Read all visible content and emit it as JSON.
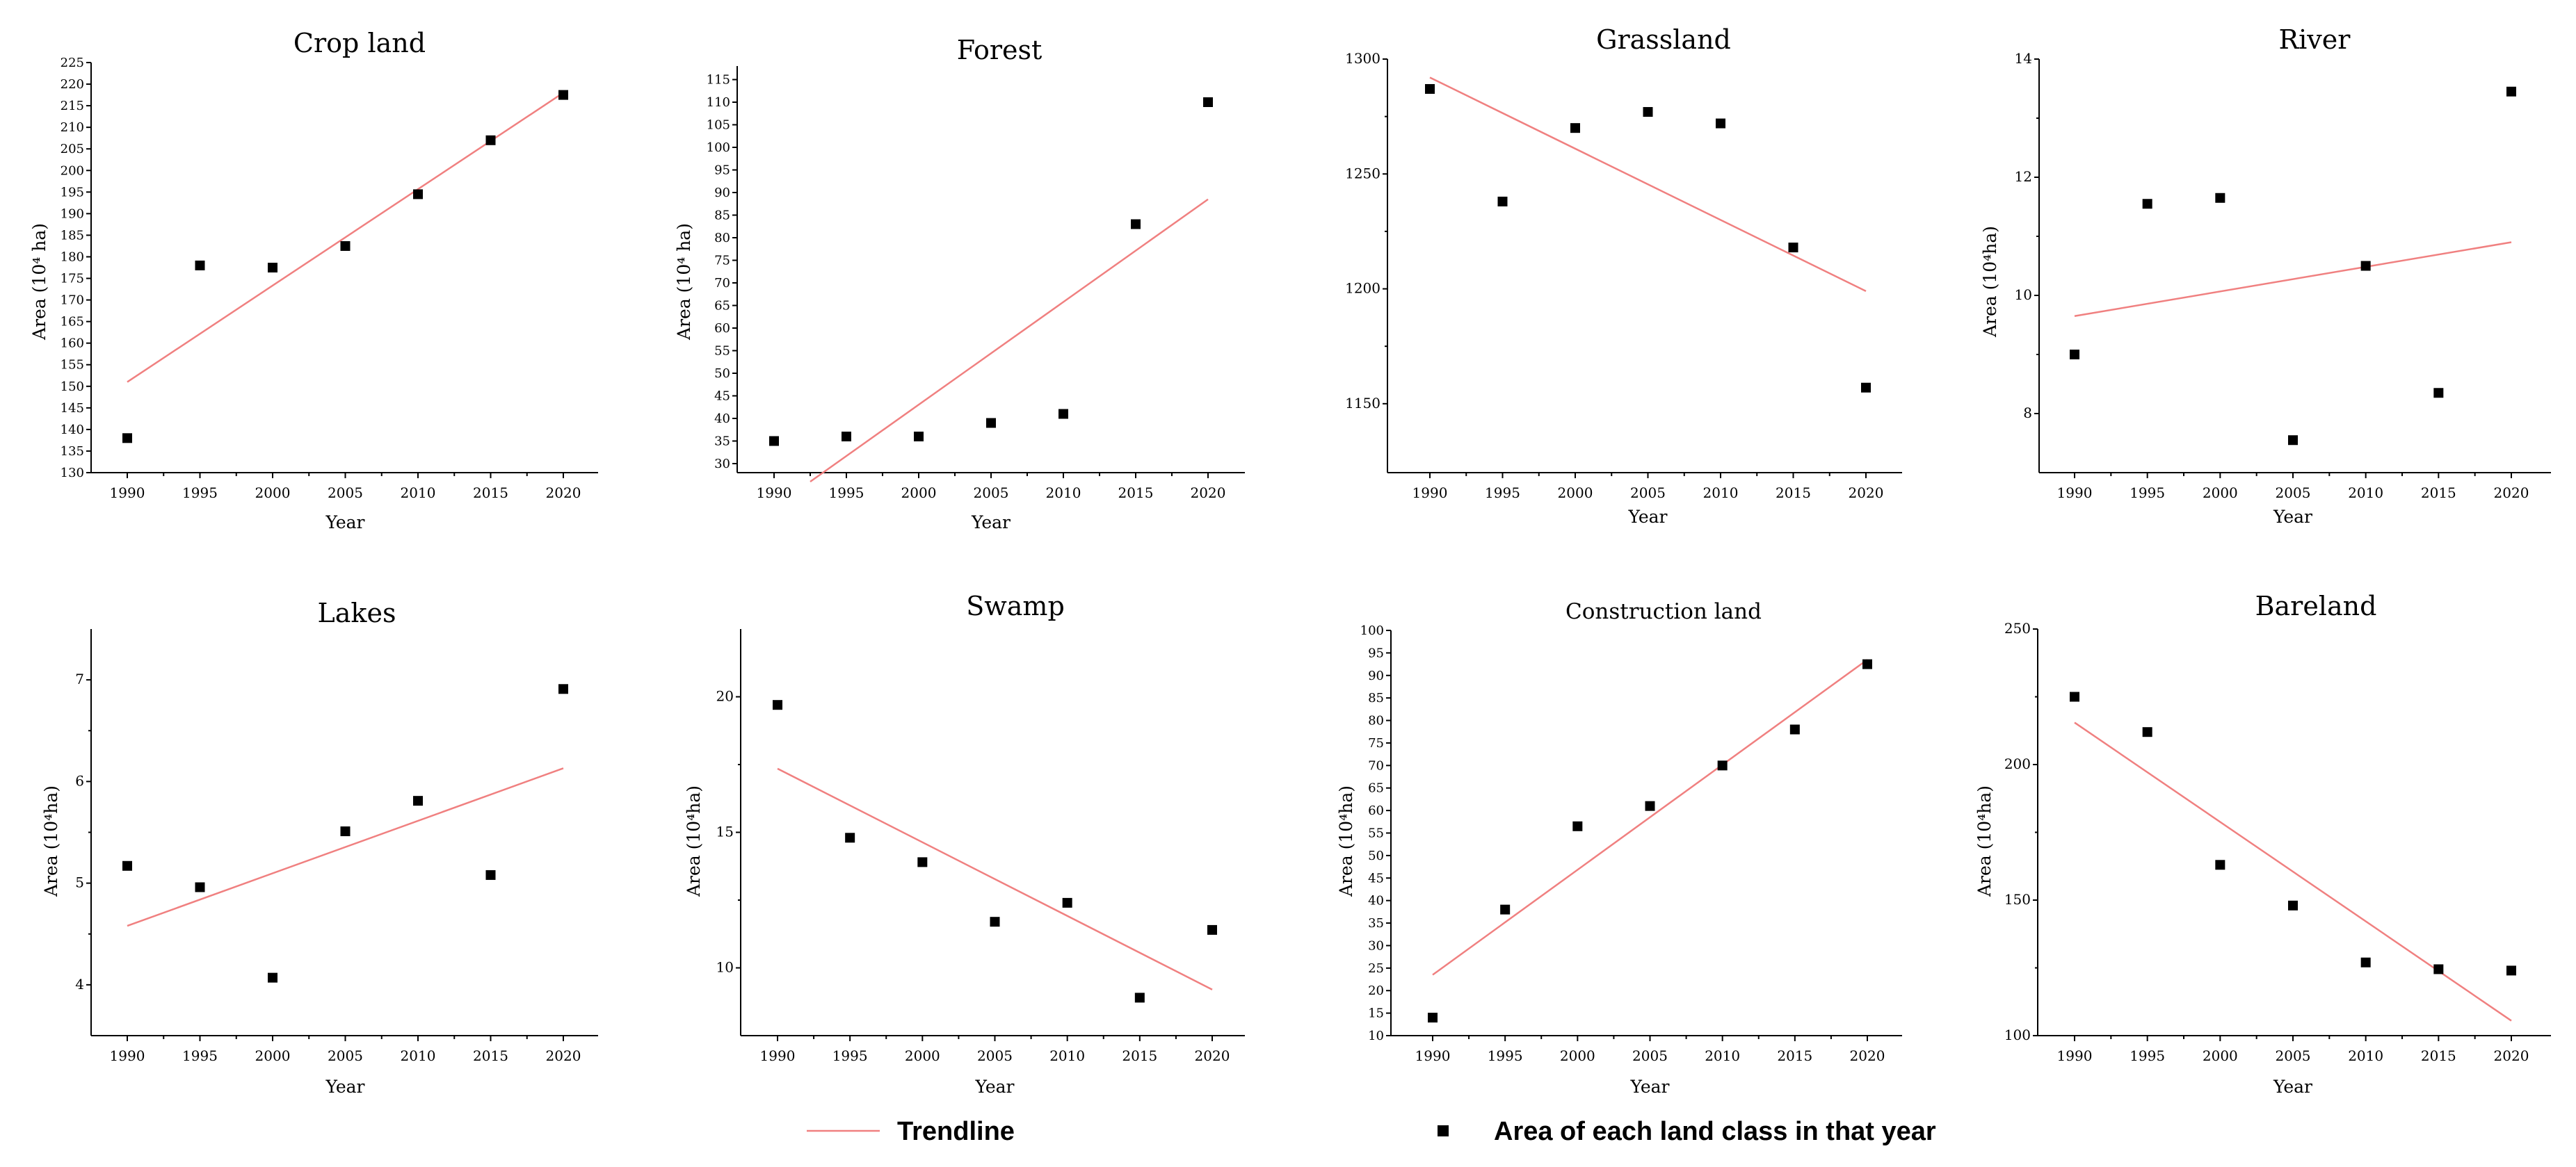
{
  "legend": {
    "trendline_label": "Trendline",
    "points_label": "Area of each land class in that year",
    "trend_color": "#f08080",
    "point_color": "#000000"
  },
  "chart_data": [
    {
      "id": "crop-land",
      "type": "scatter",
      "title": "Crop land",
      "xlabel": "Year",
      "ylabel": "Area (10⁴ ha)",
      "x": [
        1990,
        1995,
        2000,
        2005,
        2010,
        2015,
        2020
      ],
      "values": [
        138,
        178,
        177.5,
        182.5,
        194.5,
        207,
        217.5
      ],
      "ylim": [
        130,
        225
      ],
      "yticks": [
        130,
        135,
        140,
        145,
        150,
        155,
        160,
        165,
        170,
        175,
        180,
        185,
        190,
        195,
        200,
        205,
        210,
        215,
        220,
        225
      ],
      "trendline": {
        "start": [
          1990,
          151
        ],
        "end": [
          2020,
          218
        ]
      }
    },
    {
      "id": "forest",
      "type": "scatter",
      "title": "Forest",
      "xlabel": "Year",
      "ylabel": "Area (10⁴ ha)",
      "x": [
        1990,
        1995,
        2000,
        2005,
        2010,
        2015,
        2020
      ],
      "values": [
        35,
        36,
        36,
        39,
        41,
        83,
        110
      ],
      "ylim": [
        28,
        118
      ],
      "yticks": [
        30,
        35,
        40,
        45,
        50,
        55,
        60,
        65,
        70,
        75,
        80,
        85,
        90,
        95,
        100,
        105,
        110,
        115
      ],
      "trendline": {
        "start": [
          1992.5,
          26
        ],
        "end": [
          2020,
          88.5
        ]
      }
    },
    {
      "id": "grassland",
      "type": "scatter",
      "title": "Grassland",
      "xlabel": "Year",
      "ylabel": "",
      "x": [
        1990,
        1995,
        2000,
        2005,
        2010,
        2015,
        2020
      ],
      "values": [
        1287,
        1238,
        1270,
        1277,
        1272,
        1218,
        1157
      ],
      "ylim": [
        1120,
        1300
      ],
      "yticks": [
        1150,
        1200,
        1250,
        1300
      ],
      "trendline": {
        "start": [
          1990,
          1292
        ],
        "end": [
          2020,
          1199
        ]
      }
    },
    {
      "id": "river",
      "type": "scatter",
      "title": "River",
      "xlabel": "Year",
      "ylabel": "Area (10⁴ha)",
      "x": [
        1990,
        1995,
        2000,
        2005,
        2010,
        2015,
        2020
      ],
      "values": [
        9,
        11.55,
        11.65,
        7.55,
        10.5,
        8.35,
        13.45
      ],
      "ylim": [
        7,
        14
      ],
      "yticks": [
        8,
        10,
        12,
        14
      ],
      "trendline": {
        "start": [
          1990,
          9.65
        ],
        "end": [
          2020,
          10.9
        ]
      }
    },
    {
      "id": "lakes",
      "type": "scatter",
      "title": "Lakes",
      "xlabel": "Year",
      "ylabel": "Area (10⁴ha)",
      "x": [
        1990,
        1995,
        2000,
        2005,
        2010,
        2015,
        2020
      ],
      "values": [
        5.17,
        4.96,
        4.07,
        5.51,
        5.81,
        5.08,
        6.91
      ],
      "ylim": [
        3.5,
        7.5
      ],
      "yticks": [
        4,
        5,
        6,
        7
      ],
      "trendline": {
        "start": [
          1990,
          4.58
        ],
        "end": [
          2020,
          6.13
        ]
      }
    },
    {
      "id": "swamp",
      "type": "scatter",
      "title": "Swamp",
      "xlabel": "Year",
      "ylabel": "Area (10⁴ha)",
      "x": [
        1990,
        1995,
        2000,
        2005,
        2010,
        2015,
        2020
      ],
      "values": [
        19.7,
        14.8,
        13.9,
        11.7,
        12.4,
        8.9,
        11.4
      ],
      "ylim": [
        7.5,
        22.5
      ],
      "yticks": [
        10,
        15,
        20
      ],
      "trendline": {
        "start": [
          1990,
          17.35
        ],
        "end": [
          2020,
          9.2
        ]
      }
    },
    {
      "id": "construction-land",
      "type": "scatter",
      "title": "Construction land",
      "xlabel": "Year",
      "ylabel": "Area (10⁴ha)",
      "x": [
        1990,
        1995,
        2000,
        2005,
        2010,
        2015,
        2020
      ],
      "values": [
        14,
        38,
        56.5,
        61,
        70,
        78,
        92.5
      ],
      "ylim": [
        10,
        100
      ],
      "yticks": [
        10,
        15,
        20,
        25,
        30,
        35,
        40,
        45,
        50,
        55,
        60,
        65,
        70,
        75,
        80,
        85,
        90,
        95,
        100
      ],
      "trendline": {
        "start": [
          1990,
          23.5
        ],
        "end": [
          2020,
          93.5
        ]
      }
    },
    {
      "id": "bareland",
      "type": "scatter",
      "title": "Bareland",
      "xlabel": "Year",
      "ylabel": "Area (10⁴ha)",
      "x": [
        1990,
        1995,
        2000,
        2005,
        2010,
        2015,
        2020
      ],
      "values": [
        225,
        212,
        163,
        148,
        127,
        124.5,
        124
      ],
      "ylim": [
        100,
        250
      ],
      "yticks": [
        100,
        150,
        200,
        250
      ],
      "trendline": {
        "start": [
          1990,
          215.5
        ],
        "end": [
          2020,
          105.5
        ]
      }
    }
  ]
}
